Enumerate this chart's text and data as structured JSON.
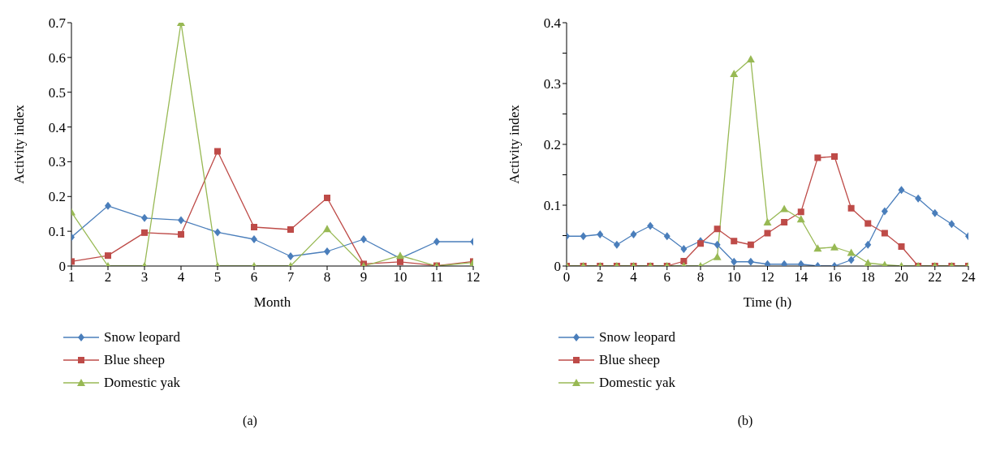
{
  "chart_data": [
    {
      "type": "line",
      "xlabel": "Month",
      "ylabel": "Activity index",
      "annotations": [
        "(a)"
      ],
      "x": [
        1,
        2,
        3,
        4,
        5,
        6,
        7,
        8,
        9,
        10,
        11,
        12
      ],
      "xlim": [
        1,
        12
      ],
      "xticks": [
        1,
        2,
        3,
        4,
        5,
        6,
        7,
        8,
        9,
        10,
        11,
        12
      ],
      "ylim": [
        0,
        0.7
      ],
      "yticks": [
        0,
        0.1,
        0.2,
        0.3,
        0.4,
        0.5,
        0.6,
        0.7
      ],
      "legend": "bottom",
      "series": [
        {
          "name": "Snow leopard",
          "color": "#4a7ebb",
          "marker": "diamond",
          "values": [
            0.083,
            0.173,
            0.138,
            0.132,
            0.097,
            0.077,
            0.028,
            0.042,
            0.077,
            0.022,
            0.07,
            0.07
          ]
        },
        {
          "name": "Blue sheep",
          "color": "#be4b48",
          "marker": "square",
          "values": [
            0.013,
            0.03,
            0.096,
            0.091,
            0.33,
            0.112,
            0.105,
            0.196,
            0.006,
            0.012,
            0.001,
            0.013
          ]
        },
        {
          "name": "Domestic yak",
          "color": "#98b954",
          "marker": "triangle",
          "values": [
            0.155,
            0,
            0,
            0.7,
            0,
            0,
            0,
            0.107,
            0,
            0.03,
            0,
            0.01
          ]
        }
      ]
    },
    {
      "type": "line",
      "xlabel": "Time (h)",
      "ylabel": "Activity index",
      "annotations": [
        "(b)"
      ],
      "x": [
        0,
        1,
        2,
        3,
        4,
        5,
        6,
        7,
        8,
        9,
        10,
        11,
        12,
        13,
        14,
        15,
        16,
        17,
        18,
        19,
        20,
        21,
        22,
        23,
        24
      ],
      "xlim": [
        0,
        24
      ],
      "xticks": [
        0,
        2,
        4,
        6,
        8,
        10,
        12,
        14,
        16,
        18,
        20,
        22,
        24
      ],
      "ylim": [
        0,
        0.4
      ],
      "yticks": [
        0,
        {
          "value": 0.05,
          "label": null
        },
        0.1,
        {
          "value": 0.15,
          "label": null
        },
        0.2,
        {
          "value": 0.25,
          "label": null
        },
        0.3,
        {
          "value": 0.35,
          "label": null
        },
        0.4
      ],
      "legend": "bottom",
      "series": [
        {
          "name": "Snow leopard",
          "color": "#4a7ebb",
          "marker": "diamond",
          "values": [
            0.049,
            0.049,
            0.052,
            0.035,
            0.052,
            0.066,
            0.049,
            0.028,
            0.041,
            0.035,
            0.007,
            0.007,
            0.003,
            0.003,
            0.003,
            0,
            0,
            0.01,
            0.035,
            0.09,
            0.125,
            0.111,
            0.087,
            0.069,
            0.049
          ]
        },
        {
          "name": "Blue sheep",
          "color": "#be4b48",
          "marker": "square",
          "values": [
            0,
            0,
            0,
            0,
            0,
            0,
            0,
            0.008,
            0.037,
            0.061,
            0.041,
            0.035,
            0.054,
            0.072,
            0.089,
            0.178,
            0.18,
            0.095,
            0.07,
            0.054,
            0.032,
            0,
            0,
            0,
            0
          ]
        },
        {
          "name": "Domestic yak",
          "color": "#98b954",
          "marker": "triangle",
          "values": [
            0,
            0,
            0,
            0,
            0,
            0,
            0,
            0,
            0,
            0.015,
            0.316,
            0.34,
            0.072,
            0.094,
            0.077,
            0.029,
            0.031,
            0.022,
            0.005,
            0.002,
            0,
            0,
            0,
            0,
            0
          ]
        }
      ]
    }
  ]
}
